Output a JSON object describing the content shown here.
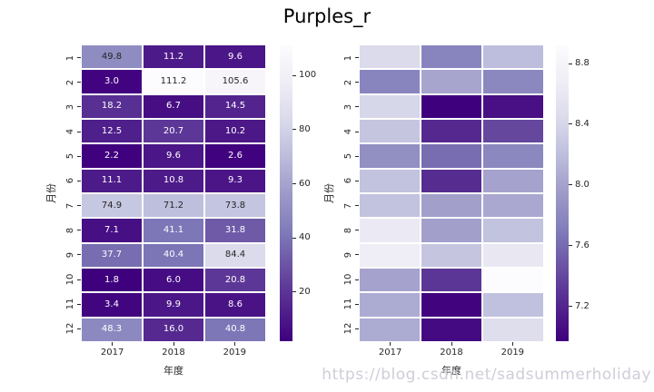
{
  "chart_title": "Purples_r",
  "watermark": "https://blog.csdn.net/sadsummerholiday",
  "colormap": {
    "name": "Purples_r",
    "stops": [
      "#3f007d",
      "#54278f",
      "#6a51a3",
      "#807dba",
      "#9e9ac8",
      "#bcbddc",
      "#dadaeb",
      "#efedf5",
      "#fcfbfd"
    ]
  },
  "text_colors": {
    "annotation_dark": "#262626",
    "annotation_light": "#ffffff",
    "tick": "#262626",
    "title": "#000000",
    "watermark": "#cdced8"
  },
  "chart_data": [
    {
      "type": "heatmap",
      "name": "annotated-heatmap",
      "xlabel": "年度",
      "ylabel": "月份",
      "x_ticklabels": [
        "2017",
        "2018",
        "2019"
      ],
      "y_ticklabels": [
        "1",
        "2",
        "3",
        "4",
        "5",
        "6",
        "7",
        "8",
        "9",
        "10",
        "11",
        "12"
      ],
      "annotated": true,
      "vmin": 1.8,
      "vmax": 111.2,
      "values": [
        [
          49.8,
          11.2,
          9.6
        ],
        [
          3.0,
          111.2,
          105.6
        ],
        [
          18.2,
          6.7,
          14.5
        ],
        [
          12.5,
          20.7,
          10.2
        ],
        [
          2.2,
          9.6,
          2.6
        ],
        [
          11.1,
          10.8,
          9.3
        ],
        [
          74.9,
          71.2,
          73.8
        ],
        [
          7.1,
          41.1,
          31.8
        ],
        [
          37.7,
          40.4,
          84.4
        ],
        [
          1.8,
          6.0,
          20.8
        ],
        [
          3.4,
          9.9,
          8.6
        ],
        [
          48.3,
          16.0,
          40.8
        ]
      ],
      "colorbar_ticks": [
        {
          "value": 20,
          "label": "20"
        },
        {
          "value": 40,
          "label": "40"
        },
        {
          "value": 60,
          "label": "60"
        },
        {
          "value": 80,
          "label": "80"
        },
        {
          "value": 100,
          "label": "100"
        }
      ]
    },
    {
      "type": "heatmap",
      "name": "plain-heatmap",
      "xlabel": "年度",
      "ylabel": "月份",
      "x_ticklabels": [
        "2017",
        "2018",
        "2019"
      ],
      "y_ticklabels": [
        "1",
        "2",
        "3",
        "4",
        "5",
        "6",
        "7",
        "8",
        "9",
        "10",
        "11",
        "12"
      ],
      "annotated": false,
      "vmin": 6.97,
      "vmax": 8.92,
      "values": [
        [
          8.45,
          7.77,
          8.2
        ],
        [
          7.77,
          8.02,
          7.79
        ],
        [
          8.41,
          6.97,
          7.07
        ],
        [
          8.26,
          7.22,
          7.4
        ],
        [
          7.85,
          7.61,
          7.79
        ],
        [
          8.24,
          7.24,
          8.0
        ],
        [
          8.24,
          7.98,
          8.04
        ],
        [
          8.63,
          7.98,
          8.24
        ],
        [
          8.68,
          8.26,
          8.61
        ],
        [
          8.0,
          7.3,
          8.92
        ],
        [
          8.06,
          6.99,
          8.22
        ],
        [
          8.06,
          7.03,
          8.49
        ]
      ],
      "colorbar_ticks": [
        {
          "value": 7.2,
          "label": "7.2"
        },
        {
          "value": 7.6,
          "label": "7.6"
        },
        {
          "value": 8.0,
          "label": "8.0"
        },
        {
          "value": 8.4,
          "label": "8.4"
        },
        {
          "value": 8.8,
          "label": "8.8"
        }
      ]
    }
  ]
}
